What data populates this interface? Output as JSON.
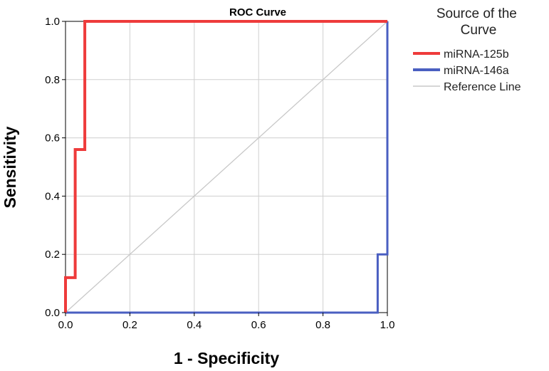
{
  "chart_data": {
    "type": "line",
    "title": "ROC Curve",
    "xlabel": "1 - Specificity",
    "ylabel": "Sensitivity",
    "xlim": [
      0,
      1
    ],
    "ylim": [
      0,
      1
    ],
    "x_ticks": [
      "0.0",
      "0.2",
      "0.4",
      "0.6",
      "0.8",
      "1.0"
    ],
    "y_ticks": [
      "0.0",
      "0.2",
      "0.4",
      "0.6",
      "0.8",
      "1.0"
    ],
    "grid": true,
    "legend": {
      "title": "Source of the Curve",
      "position": "right"
    },
    "series": [
      {
        "name": "miRNA-125b",
        "color": "#ee3b3b",
        "x": [
          0.0,
          0.0,
          0.03,
          0.03,
          0.06,
          0.06,
          1.0
        ],
        "y": [
          0.0,
          0.12,
          0.12,
          0.56,
          0.56,
          1.0,
          1.0
        ]
      },
      {
        "name": "miRNA-146a",
        "color": "#4a5fc1",
        "x": [
          0.0,
          0.97,
          0.97,
          1.0,
          1.0
        ],
        "y": [
          0.0,
          0.0,
          0.2,
          0.2,
          1.0
        ]
      },
      {
        "name": "Reference Line",
        "color": "#c8c8c8",
        "x": [
          0.0,
          1.0
        ],
        "y": [
          0.0,
          1.0
        ]
      }
    ]
  }
}
